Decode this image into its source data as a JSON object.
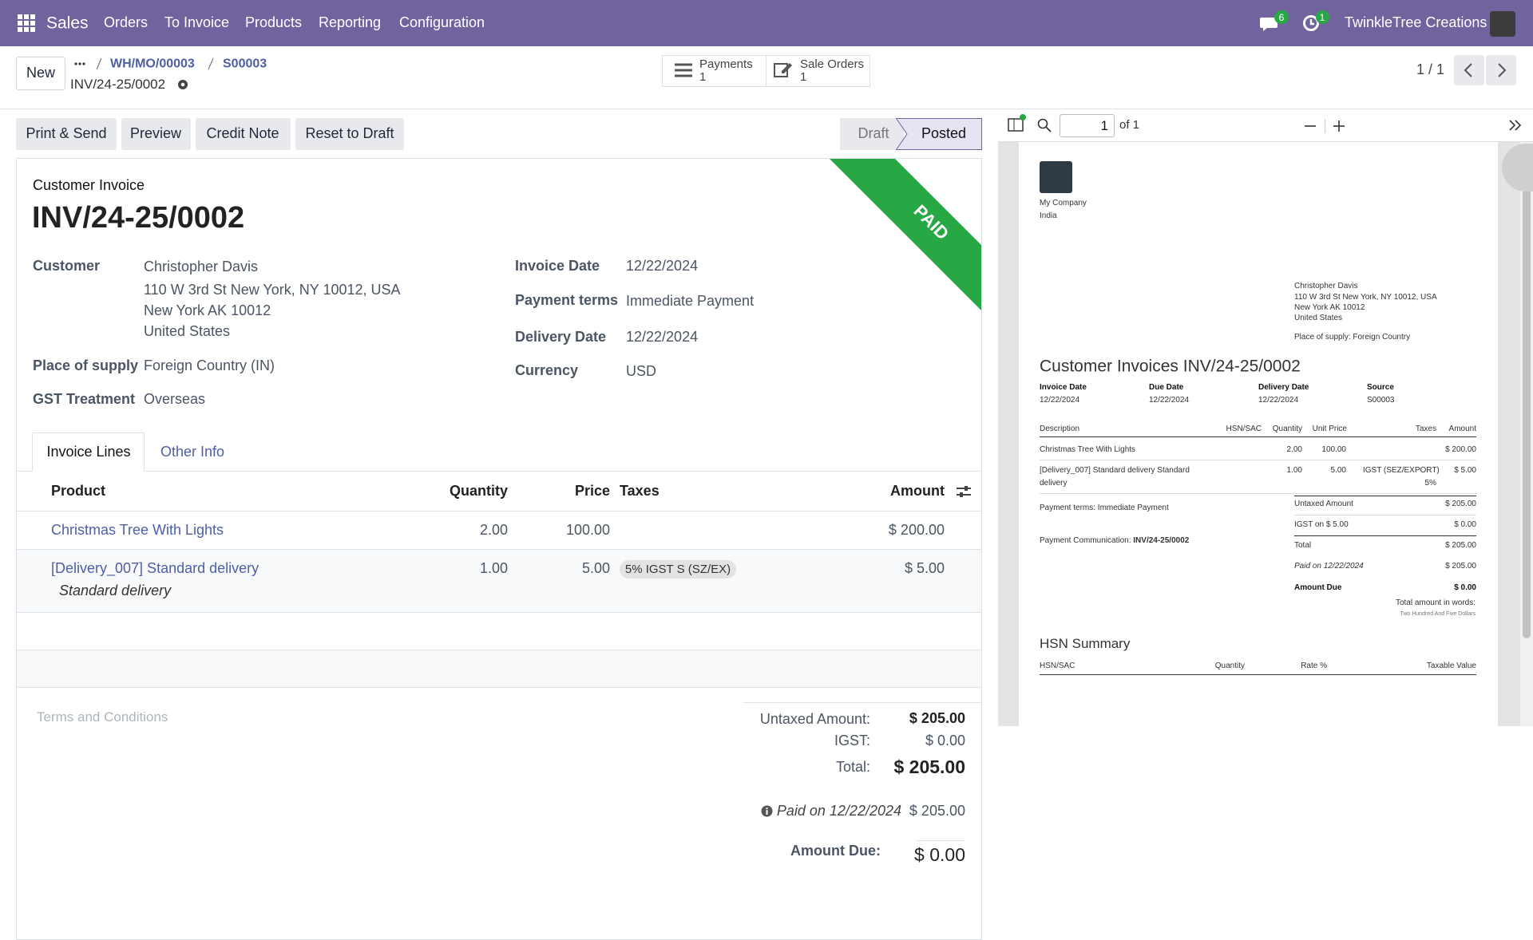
{
  "navbar": {
    "app": "Sales",
    "menu": [
      "Orders",
      "To Invoice",
      "Products",
      "Reporting",
      "Configuration"
    ],
    "message_count": "6",
    "activity_count": "1",
    "company": "TwinkleTree Creations"
  },
  "control_panel": {
    "new_button": "New",
    "breadcrumbs": [
      "WH/MO/00003",
      "S00003"
    ],
    "record_name": "INV/24-25/0002",
    "smart_buttons": [
      {
        "label": "Payments",
        "count": "1"
      },
      {
        "label": "Sale Orders",
        "count": "1"
      }
    ],
    "pager": "1 / 1"
  },
  "actions": [
    "Print & Send",
    "Preview",
    "Credit Note",
    "Reset to Draft"
  ],
  "statusbar": [
    "Draft",
    "Posted"
  ],
  "invoice": {
    "kind": "Customer Invoice",
    "name": "INV/24-25/0002",
    "ribbon": "PAID",
    "fields_left": [
      {
        "label": "Customer",
        "lines": [
          "Christopher Davis",
          "110 W 3rd St New York, NY 10012, USA",
          "New York AK 10012",
          "United States"
        ]
      },
      {
        "label": "Place of supply",
        "lines": [
          "Foreign Country (IN)"
        ]
      },
      {
        "label": "GST Treatment",
        "lines": [
          "Overseas"
        ]
      }
    ],
    "fields_right": [
      {
        "label": "Invoice Date",
        "value": "12/22/2024"
      },
      {
        "label": "Payment terms",
        "value": "Immediate Payment"
      },
      {
        "label": "Delivery Date",
        "value": "12/22/2024"
      },
      {
        "label": "Currency",
        "value": "USD"
      }
    ],
    "tabs": [
      "Invoice Lines",
      "Other Info"
    ],
    "table": {
      "columns": [
        "Product",
        "Quantity",
        "Price",
        "Taxes",
        "Amount"
      ],
      "rows": [
        {
          "product": "Christmas Tree With Lights",
          "quantity": "2.00",
          "price": "100.00",
          "amount": "$ 200.00"
        },
        {
          "product": "[Delivery_007] Standard delivery",
          "note": "Standard delivery",
          "quantity": "1.00",
          "price": "5.00",
          "taxes": [
            "5% IGST S (SZ/EX)"
          ],
          "amount": "$ 5.00"
        }
      ]
    },
    "terms_placeholder": "Terms and Conditions",
    "totals": {
      "untaxed_label": "Untaxed Amount:",
      "untaxed": "$ 205.00",
      "tax_label": "IGST:",
      "tax": "$ 0.00",
      "total_label": "Total:",
      "total": "$ 205.00",
      "paid_label": "Paid on 12/22/2024",
      "paid": "$ 205.00",
      "due_label": "Amount Due:",
      "due": "$ 0.00"
    }
  },
  "preview": {
    "page_number": "1",
    "page_count": "of 1",
    "company": [
      "My Company",
      "India"
    ],
    "address": [
      "Christopher Davis",
      "110 W 3rd St New York, NY 10012, USA",
      "New York AK 10012",
      "United States"
    ],
    "place_of_supply": "Place of supply: Foreign Country",
    "title": "Customer Invoices INV/24-25/0002",
    "info": [
      {
        "label": "Invoice Date",
        "value": "12/22/2024"
      },
      {
        "label": "Due Date",
        "value": "12/22/2024"
      },
      {
        "label": "Delivery Date",
        "value": "12/22/2024"
      },
      {
        "label": "Source",
        "value": "S00003"
      }
    ],
    "columns": [
      "Description",
      "HSN/SAC",
      "Quantity",
      "Unit Price",
      "Taxes",
      "Amount"
    ],
    "lines": [
      {
        "description": [
          "Christmas Tree With Lights"
        ],
        "quantity": "2.00",
        "unit_price": "100.00",
        "amount": "$ 200.00"
      },
      {
        "description": [
          "[Delivery_007] Standard delivery Standard",
          "delivery"
        ],
        "quantity": "1.00",
        "unit_price": "5.00",
        "taxes": [
          "IGST (SEZ/EXPORT)",
          "5%"
        ],
        "amount": "$ 5.00"
      }
    ],
    "payment_terms": "Payment terms: Immediate Payment",
    "payment_communication_label": "Payment Communication:",
    "payment_communication": "INV/24-25/0002",
    "totals": [
      {
        "label": "Untaxed Amount",
        "value": "$ 205.00"
      },
      {
        "label": "IGST on $ 5.00",
        "value": "$ 0.00"
      },
      {
        "label": "Total",
        "value": "$ 205.00"
      },
      {
        "label": "Paid on 12/22/2024",
        "value": "$ 205.00"
      },
      {
        "label": "Amount Due",
        "value": "$ 0.00"
      }
    ],
    "amount_in_words_label": "Total amount in words:",
    "amount_in_words": "Two Hundred And Five Dollars",
    "hsn_title": "HSN Summary",
    "hsn_columns": [
      "HSN/SAC",
      "Quantity",
      "Rate %",
      "Taxable Value"
    ]
  }
}
